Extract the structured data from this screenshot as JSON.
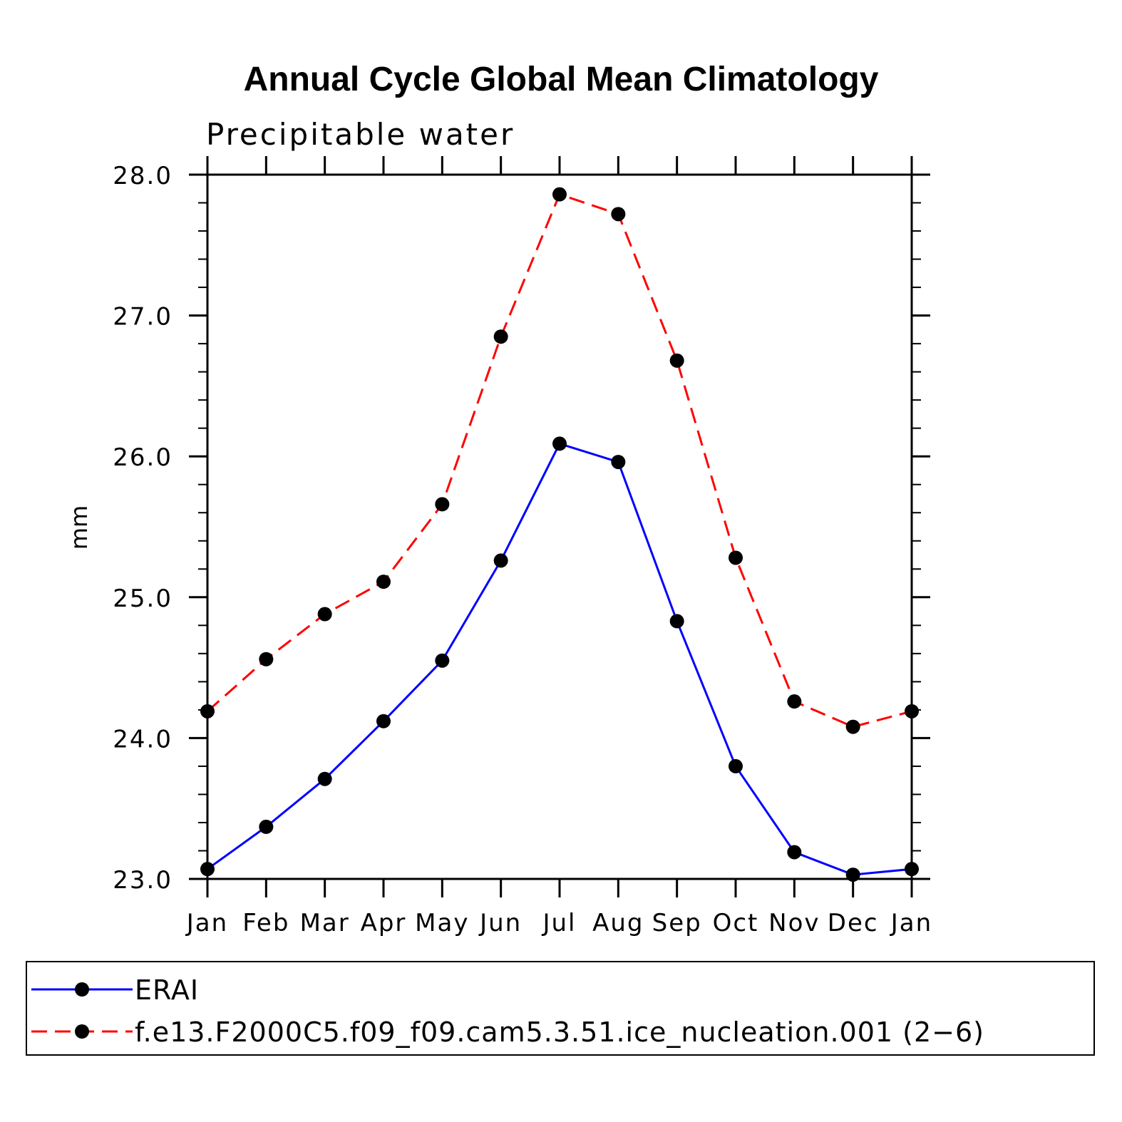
{
  "chart_data": {
    "type": "line",
    "title": "Annual Cycle Global Mean Climatology",
    "subtitle": "Precipitable water",
    "xlabel": "",
    "ylabel": "mm",
    "categories": [
      "Jan",
      "Feb",
      "Mar",
      "Apr",
      "May",
      "Jun",
      "Jul",
      "Aug",
      "Sep",
      "Oct",
      "Nov",
      "Dec",
      "Jan"
    ],
    "ylim": [
      23.0,
      28.0
    ],
    "yticks": [
      "23.0",
      "24.0",
      "25.0",
      "26.0",
      "27.0",
      "28.0"
    ],
    "series": [
      {
        "name": "ERAI",
        "color": "#0000ff",
        "style": "solid",
        "marker": "filled-circle",
        "values": [
          23.07,
          23.37,
          23.71,
          24.12,
          24.55,
          25.26,
          26.09,
          25.96,
          24.83,
          23.8,
          23.19,
          23.03,
          23.07
        ]
      },
      {
        "name": "f.e13.F2000C5.f09_f09.cam5.3.51.ice_nucleation.001 (2−6)",
        "color": "#ff0000",
        "style": "dashed",
        "marker": "filled-circle",
        "values": [
          24.19,
          24.56,
          24.88,
          25.11,
          25.66,
          26.85,
          27.86,
          27.72,
          26.68,
          25.28,
          24.26,
          24.08,
          24.19
        ]
      }
    ],
    "legend": {
      "position": "bottom"
    }
  }
}
